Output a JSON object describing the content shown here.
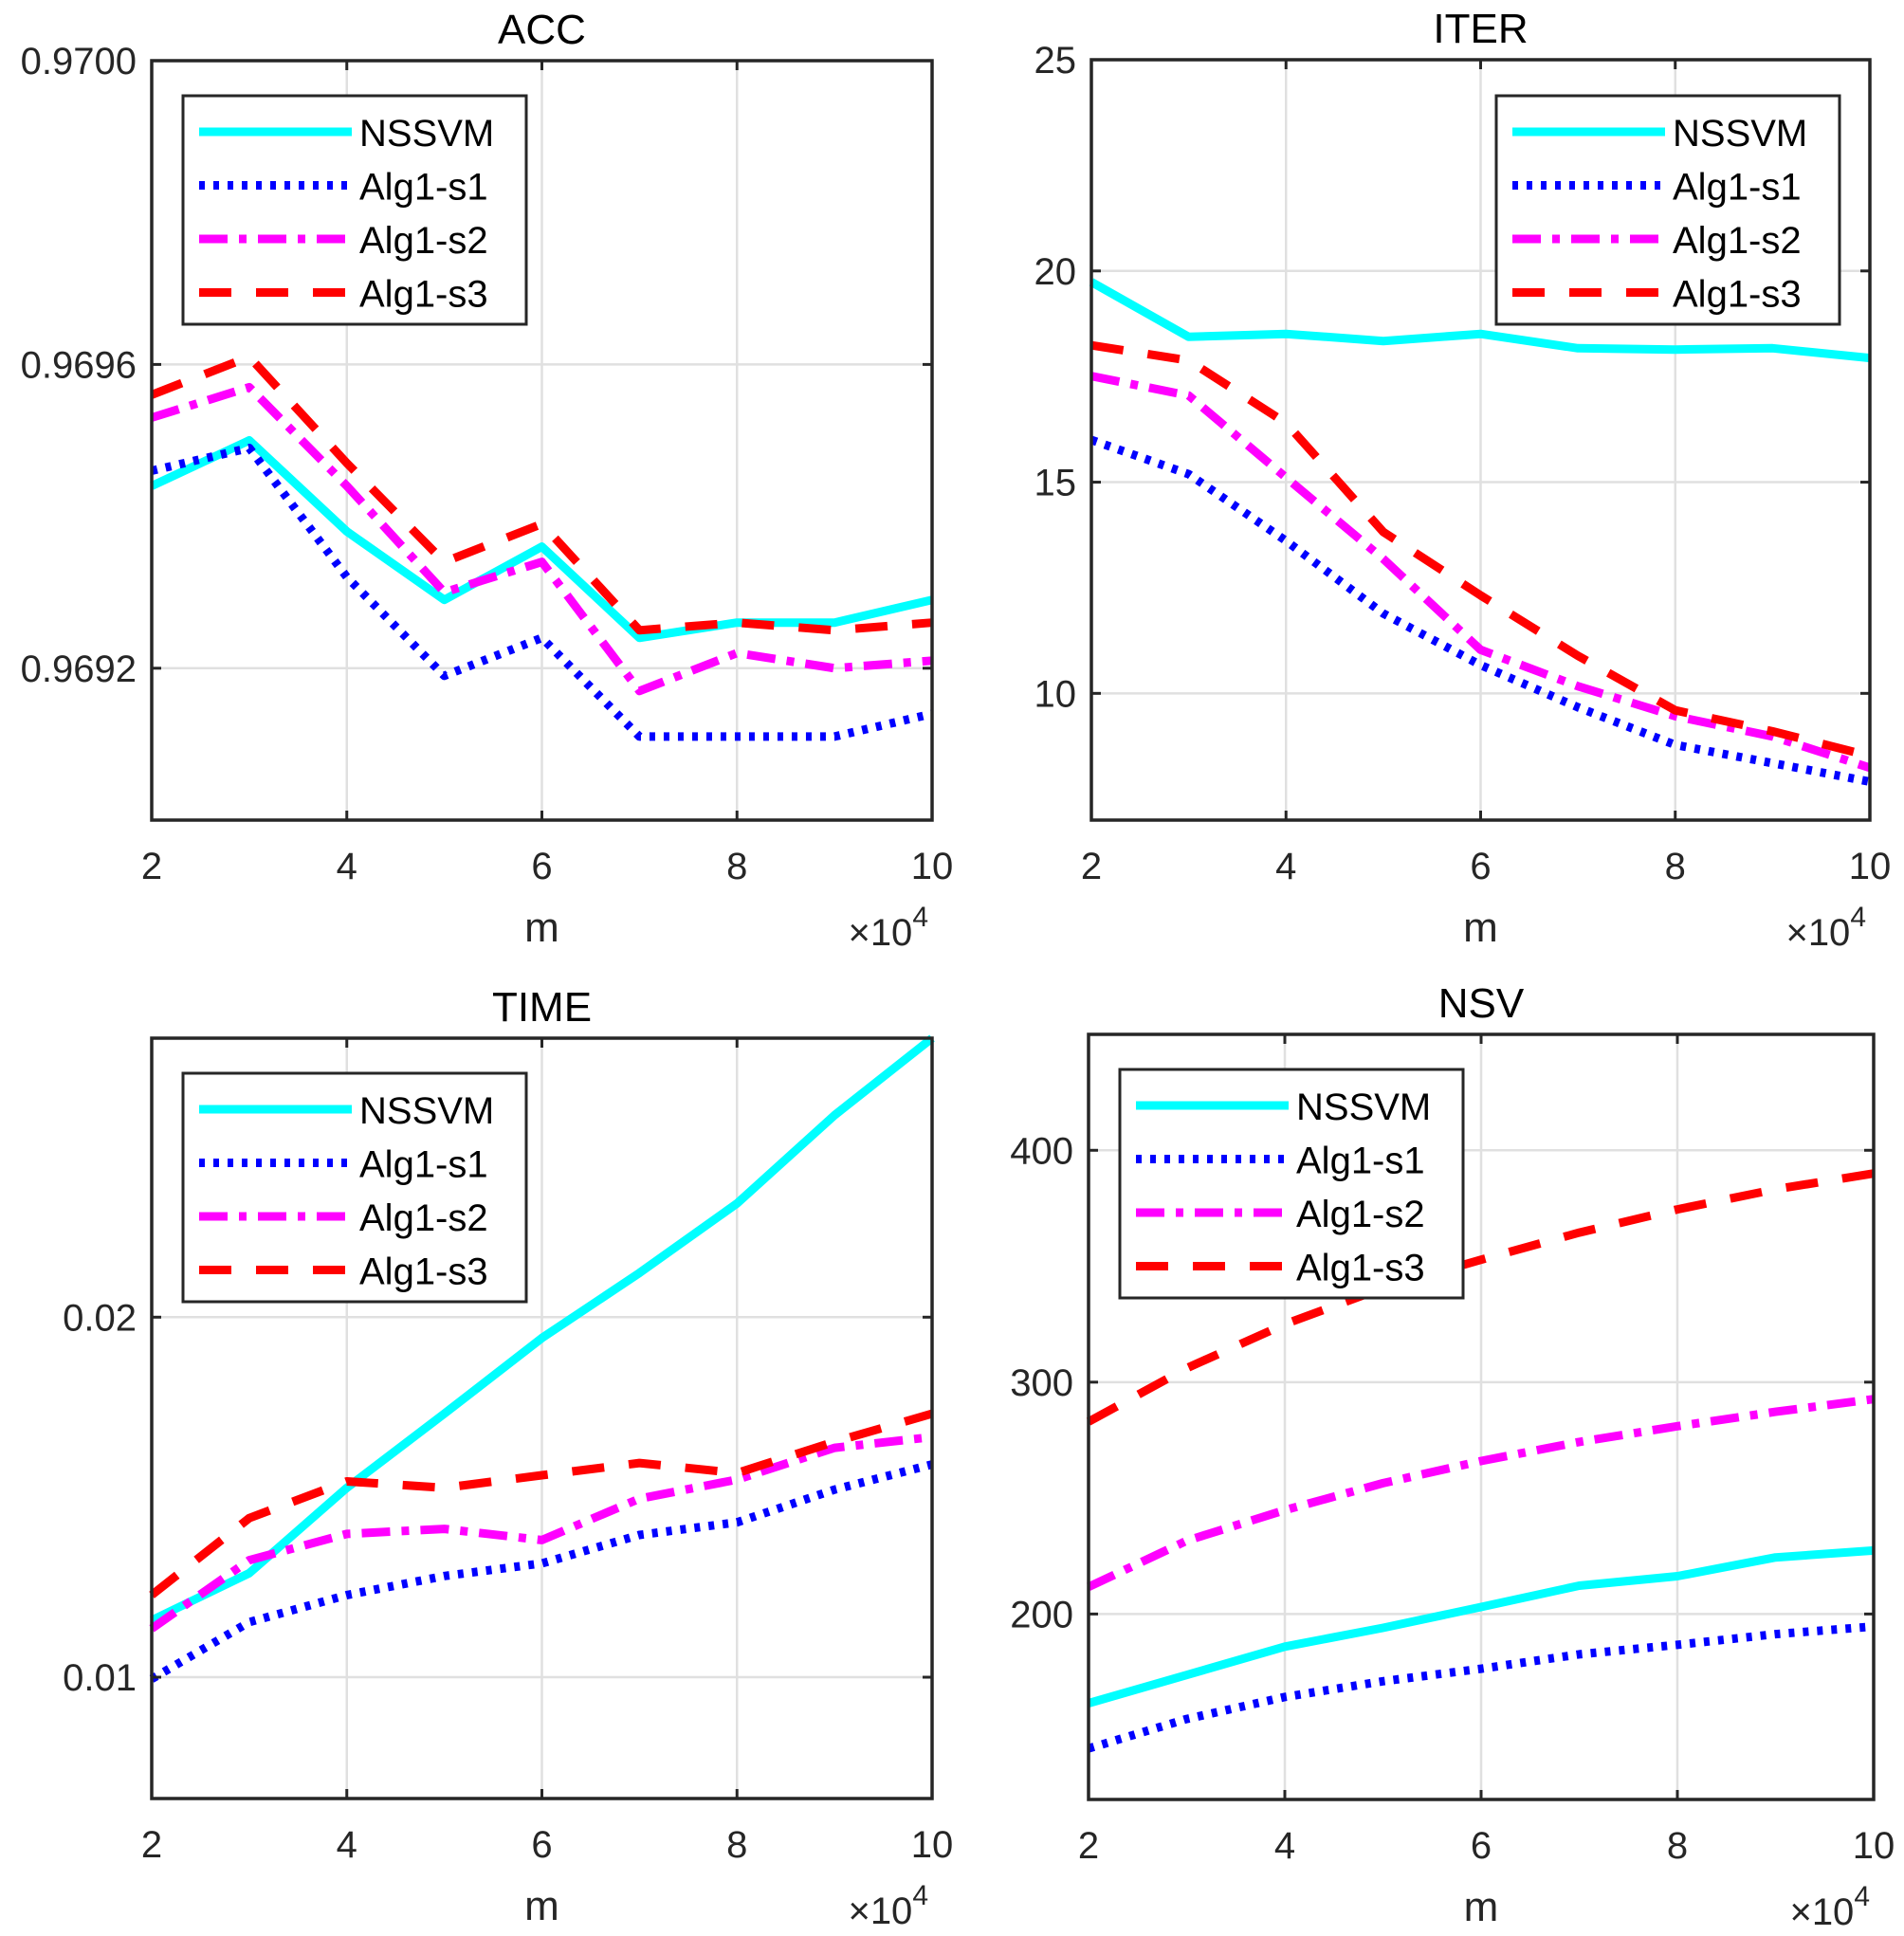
{
  "figure_title": "",
  "series_styles": [
    {
      "name": "NSSVM",
      "color": "#00FFFF",
      "style": "solid"
    },
    {
      "name": "Alg1-s1",
      "color": "#0000FF",
      "style": "dotted"
    },
    {
      "name": "Alg1-s2",
      "color": "#FF00FF",
      "style": "dashdot"
    },
    {
      "name": "Alg1-s3",
      "color": "#FF0000",
      "style": "dashed"
    }
  ],
  "chart_data": [
    {
      "id": "acc",
      "type": "line",
      "title": "ACC",
      "xlabel": "m",
      "x_exponent_label": "×10",
      "x_exponent": "4",
      "ylabel": "",
      "x": [
        2,
        3,
        4,
        5,
        6,
        7,
        8,
        9,
        10
      ],
      "xlim": [
        2,
        10
      ],
      "xticks": [
        2,
        4,
        6,
        8,
        10
      ],
      "xtick_labels": [
        "2",
        "4",
        "6",
        "8",
        "10"
      ],
      "ylim": [
        0.969,
        0.97
      ],
      "yticks": [
        0.9692,
        0.9696,
        0.97
      ],
      "ytick_labels": [
        "0.9692",
        "0.9696",
        "0.9700"
      ],
      "grid": true,
      "legend_position": "top-left",
      "series": [
        {
          "name": "NSSVM",
          "values": [
            0.96944,
            0.9695,
            0.96938,
            0.96929,
            0.96936,
            0.96924,
            0.96926,
            0.96926,
            0.96929
          ]
        },
        {
          "name": "Alg1-s1",
          "values": [
            0.96946,
            0.96949,
            0.96932,
            0.96919,
            0.96924,
            0.96911,
            0.96911,
            0.96911,
            0.96914
          ]
        },
        {
          "name": "Alg1-s2",
          "values": [
            0.96953,
            0.96957,
            0.96944,
            0.9693,
            0.96934,
            0.96917,
            0.96922,
            0.9692,
            0.96921
          ]
        },
        {
          "name": "Alg1-s3",
          "values": [
            0.96956,
            0.96961,
            0.96947,
            0.96934,
            0.96939,
            0.96925,
            0.96926,
            0.96925,
            0.96926
          ]
        }
      ]
    },
    {
      "id": "iter",
      "type": "line",
      "title": "ITER",
      "xlabel": "m",
      "x_exponent_label": "×10",
      "x_exponent": "4",
      "ylabel": "",
      "x": [
        2,
        3,
        4,
        5,
        6,
        7,
        8,
        9,
        10
      ],
      "xlim": [
        2,
        10
      ],
      "xticks": [
        2,
        4,
        6,
        8,
        10
      ],
      "xtick_labels": [
        "2",
        "4",
        "6",
        "8",
        "10"
      ],
      "ylim": [
        7,
        25
      ],
      "yticks": [
        10,
        15,
        20,
        25
      ],
      "ytick_labels": [
        "10",
        "15",
        "20",
        "25"
      ],
      "grid": true,
      "legend_position": "top-right",
      "series": [
        {
          "name": "NSSVM",
          "values": [
            19.74,
            18.44,
            18.51,
            18.34,
            18.51,
            18.17,
            18.14,
            18.17,
            17.94
          ]
        },
        {
          "name": "Alg1-s1",
          "values": [
            16.0,
            15.19,
            13.61,
            11.89,
            10.67,
            9.67,
            8.78,
            8.35,
            7.91
          ]
        },
        {
          "name": "Alg1-s2",
          "values": [
            17.51,
            17.05,
            15.11,
            13.18,
            11.03,
            10.17,
            9.46,
            8.98,
            8.24
          ]
        },
        {
          "name": "Alg1-s3",
          "values": [
            18.24,
            17.88,
            16.4,
            13.82,
            12.32,
            10.89,
            9.6,
            9.1,
            8.52
          ]
        }
      ]
    },
    {
      "id": "time",
      "type": "line",
      "title": "TIME",
      "xlabel": "m",
      "x_exponent_label": "×10",
      "x_exponent": "4",
      "ylabel": "",
      "x": [
        2,
        3,
        4,
        5,
        6,
        7,
        8,
        9,
        10
      ],
      "xlim": [
        2,
        10
      ],
      "xticks": [
        2,
        4,
        6,
        8,
        10
      ],
      "xtick_labels": [
        "2",
        "4",
        "6",
        "8",
        "10"
      ],
      "ylim": [
        0.00663,
        0.02775
      ],
      "yticks": [
        0.01,
        0.02
      ],
      "ytick_labels": [
        "0.01",
        "0.02"
      ],
      "grid": true,
      "legend_position": "top-left",
      "series": [
        {
          "name": "NSSVM",
          "values": [
            0.01158,
            0.01289,
            0.01526,
            0.01732,
            0.01942,
            0.02123,
            0.02316,
            0.02561,
            0.02775
          ]
        },
        {
          "name": "Alg1-s1",
          "values": [
            0.00995,
            0.01153,
            0.01228,
            0.01281,
            0.01316,
            0.01395,
            0.0143,
            0.01521,
            0.01591
          ]
        },
        {
          "name": "Alg1-s2",
          "values": [
            0.01135,
            0.01325,
            0.01398,
            0.01412,
            0.01381,
            0.01496,
            0.01549,
            0.01637,
            0.01667
          ]
        },
        {
          "name": "Alg1-s3",
          "values": [
            0.01228,
            0.01442,
            0.01544,
            0.01526,
            0.01561,
            0.01595,
            0.01567,
            0.01654,
            0.01732
          ]
        }
      ]
    },
    {
      "id": "nsv",
      "type": "line",
      "title": "NSV",
      "xlabel": "m",
      "x_exponent_label": "×10",
      "x_exponent": "4",
      "ylabel": "",
      "x": [
        2,
        3,
        4,
        5,
        6,
        7,
        8,
        9,
        10
      ],
      "xlim": [
        2,
        10
      ],
      "xticks": [
        2,
        4,
        6,
        8,
        10
      ],
      "xtick_labels": [
        "2",
        "4",
        "6",
        "8",
        "10"
      ],
      "ylim": [
        120,
        450
      ],
      "yticks": [
        200,
        300,
        400
      ],
      "ytick_labels": [
        "200",
        "300",
        "400"
      ],
      "grid": true,
      "legend_position": "top-left",
      "series": [
        {
          "name": "NSSVM",
          "values": [
            161.5,
            173.7,
            185.9,
            194.0,
            203.0,
            212.2,
            216.3,
            224.4,
            227.4
          ]
        },
        {
          "name": "Alg1-s1",
          "values": [
            142.0,
            154.7,
            164.2,
            171.0,
            176.4,
            182.6,
            186.7,
            191.3,
            194.6
          ]
        },
        {
          "name": "Alg1-s2",
          "values": [
            211.7,
            231.6,
            244.8,
            256.4,
            266.0,
            274.2,
            281.0,
            287.2,
            292.7
          ]
        },
        {
          "name": "Alg1-s3",
          "values": [
            282.9,
            306.0,
            325.0,
            340.6,
            352.8,
            364.5,
            374.5,
            383.2,
            390.0
          ]
        }
      ]
    }
  ]
}
